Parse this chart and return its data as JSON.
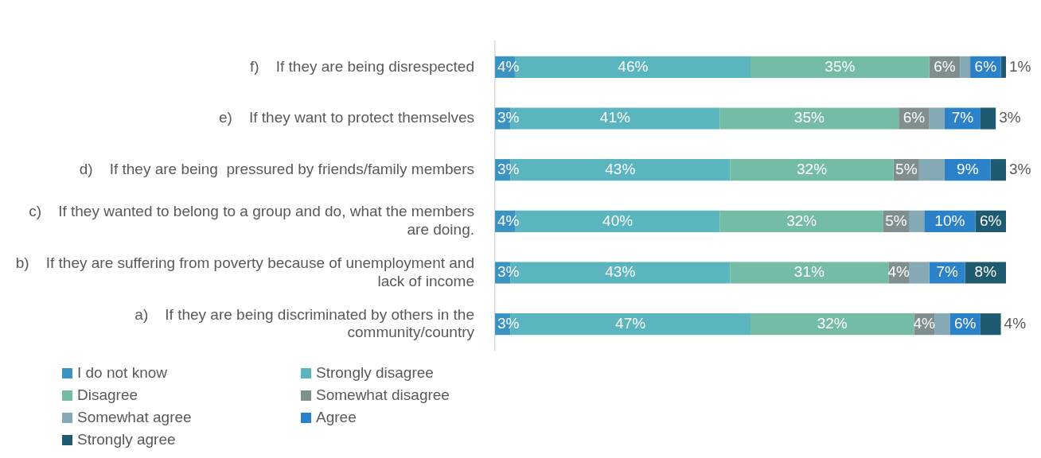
{
  "chart_data": {
    "type": "bar",
    "orientation": "horizontal",
    "stacked": true,
    "legend": "bottom left",
    "xlim": [
      0,
      100
    ],
    "categories": [
      "f)    If they are being disrespected",
      "e)    If they want to protect themselves",
      "d)    If they are being  pressured by friends/family members",
      "c)    If they wanted to belong to a group and do, what the members are doing.",
      "b)    If they are suffering from poverty because of unemployment and lack of income",
      "a)    If they are being discriminated by others in the community/country"
    ],
    "series": [
      {
        "name": "I do not know",
        "color": "#3a93c3",
        "values": [
          4,
          3,
          3,
          4,
          3,
          3
        ],
        "value_labels": [
          "4%",
          "3%",
          "3%",
          "4%",
          "3%",
          "3%"
        ]
      },
      {
        "name": "Strongly disagree",
        "color": "#5ab5bf",
        "values": [
          46,
          41,
          43,
          40,
          43,
          47
        ],
        "value_labels": [
          "46%",
          "41%",
          "43%",
          "40%",
          "43%",
          "47%"
        ]
      },
      {
        "name": "Disagree",
        "color": "#75bca6",
        "values": [
          35,
          35,
          32,
          32,
          31,
          32
        ],
        "value_labels": [
          "35%",
          "35%",
          "32%",
          "32%",
          "31%",
          "32%"
        ]
      },
      {
        "name": "Somewhat disagree",
        "color": "#7f8f8f",
        "values": [
          6,
          6,
          5,
          5,
          4,
          4
        ],
        "value_labels": [
          "6%",
          "6%",
          "5%",
          "5%",
          "4%",
          "4%"
        ]
      },
      {
        "name": "Somewhat agree",
        "color": "#86aab5",
        "values": [
          2,
          3,
          5,
          3,
          4,
          3
        ],
        "value_labels": [
          null,
          null,
          null,
          null,
          null,
          null
        ]
      },
      {
        "name": "Agree",
        "color": "#2b82c9",
        "values": [
          6,
          7,
          9,
          10,
          7,
          6
        ],
        "value_labels": [
          "6%",
          "7%",
          "9%",
          "10%",
          "7%",
          "6%"
        ]
      },
      {
        "name": "Strongly agree",
        "color": "#1e5a70",
        "values": [
          1,
          3,
          3,
          6,
          8,
          4
        ],
        "value_labels": [
          "1%",
          "3%",
          "3%",
          "6%",
          "8%",
          "4%"
        ]
      }
    ]
  }
}
